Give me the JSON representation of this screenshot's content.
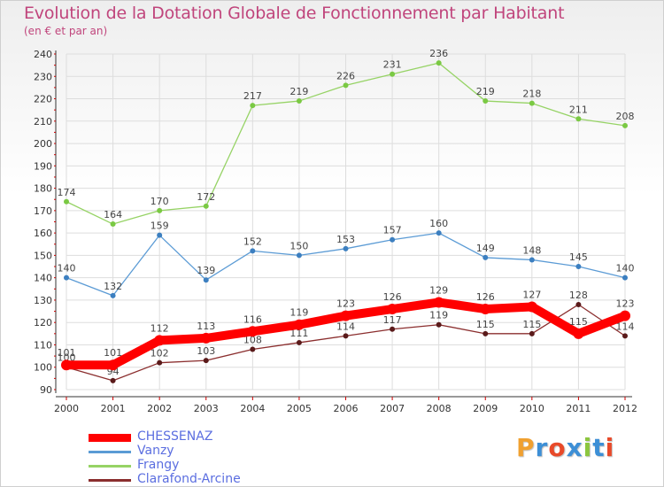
{
  "title": "Evolution de la Dotation Globale de Fonctionnement par Habitant",
  "subtitle": "(en € et par an)",
  "logo": {
    "letters": [
      "P",
      "r",
      "o",
      "x",
      "i",
      "t",
      "i"
    ],
    "colors": [
      "#f0a030",
      "#3d8fd6",
      "#e84a2a",
      "#3d8fd6",
      "#8cc63e",
      "#3d8fd6",
      "#e84a2a"
    ]
  },
  "colors": {
    "title": "#c0457c",
    "axis": "#333333",
    "grid": "#dddddd",
    "legend_text": "#5b6ee0"
  },
  "chart_data": {
    "type": "line",
    "x": [
      "2000",
      "2001",
      "2002",
      "2003",
      "2004",
      "2005",
      "2006",
      "2007",
      "2008",
      "2009",
      "2010",
      "2011",
      "2012"
    ],
    "ylim": [
      90,
      240
    ],
    "yticks": [
      "90",
      "100",
      "110",
      "120",
      "130",
      "140",
      "150",
      "160",
      "170",
      "180",
      "190",
      "200",
      "210",
      "220",
      "230",
      "240"
    ],
    "grid": true,
    "legend_position": "bottom-left",
    "series": [
      {
        "name": "Frangy",
        "color": "#96d365",
        "point_color": "#7ac943",
        "values": [
          174,
          164,
          170,
          172,
          217,
          219,
          226,
          231,
          236,
          219,
          218,
          211,
          208
        ],
        "labels": [
          "174",
          "164",
          "170",
          "172",
          "217",
          "219",
          "226",
          "231",
          "236",
          "219",
          "218",
          "211",
          "208"
        ]
      },
      {
        "name": "Vanzy",
        "color": "#5b9bd5",
        "point_color": "#3c7fc0",
        "values": [
          140,
          132,
          159,
          139,
          152,
          150,
          153,
          157,
          160,
          149,
          148,
          145,
          140
        ],
        "labels": [
          "140",
          "132",
          "159",
          "139",
          "152",
          "150",
          "153",
          "157",
          "160",
          "149",
          "148",
          "145",
          "140"
        ]
      },
      {
        "name": "Clarafond-Arcine",
        "color": "#8b2e2e",
        "point_color": "#5a1a1a",
        "values": [
          100,
          94,
          102,
          103,
          108,
          111,
          114,
          117,
          119,
          115,
          115,
          128,
          114
        ],
        "labels": [
          "100",
          "94",
          "102",
          "103",
          "108",
          "111",
          "114",
          "117",
          "119",
          "115",
          "115",
          "128",
          "114"
        ]
      },
      {
        "name": "CHESSENAZ",
        "color": "#ff0000",
        "point_color": "#ff0000",
        "values": [
          101,
          101,
          112,
          113,
          116,
          119,
          123,
          126,
          129,
          126,
          127,
          115,
          123
        ],
        "labels": [
          "101",
          "101",
          "112",
          "113",
          "116",
          "119",
          "123",
          "126",
          "129",
          "126",
          "127",
          "115",
          "123"
        ]
      }
    ],
    "legend_order": [
      "CHESSENAZ",
      "Vanzy",
      "Frangy",
      "Clarafond-Arcine"
    ]
  }
}
